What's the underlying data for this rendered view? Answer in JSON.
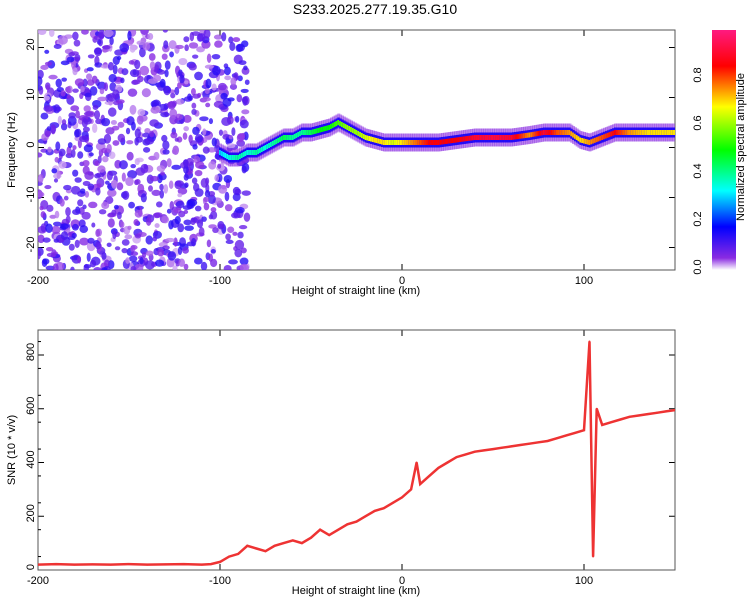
{
  "chart_data": [
    {
      "type": "heatmap",
      "title": "S233.2025.277.19.35.G10",
      "xlabel": "Height of straight line (km)",
      "ylabel": "Frequency (Hz)",
      "xlim": [
        -200,
        150
      ],
      "ylim": [
        -24.5,
        23.5
      ],
      "xticks": [
        -200,
        -100,
        0,
        100
      ],
      "yticks": [
        -20,
        -10,
        0,
        10,
        20
      ],
      "colorbar": {
        "label": "Normalized spectral amplitude",
        "ticks": [
          "0.0",
          "0.2",
          "0.4",
          "0.6",
          "0.8"
        ],
        "range": [
          0,
          1
        ]
      },
      "ridge": [
        [
          -100,
          -1,
          0.3
        ],
        [
          -95,
          -2,
          0.35
        ],
        [
          -90,
          -2,
          0.4
        ],
        [
          -85,
          -1,
          0.35
        ],
        [
          -80,
          -1,
          0.4
        ],
        [
          -75,
          0,
          0.35
        ],
        [
          -70,
          1,
          0.4
        ],
        [
          -65,
          2,
          0.45
        ],
        [
          -60,
          2,
          0.4
        ],
        [
          -55,
          3,
          0.4
        ],
        [
          -50,
          3,
          0.45
        ],
        [
          -45,
          3.5,
          0.5
        ],
        [
          -40,
          4,
          0.5
        ],
        [
          -35,
          5,
          0.55
        ],
        [
          -30,
          4,
          0.6
        ],
        [
          -25,
          3,
          0.6
        ],
        [
          -20,
          2,
          0.65
        ],
        [
          -15,
          1.5,
          0.7
        ],
        [
          -10,
          1,
          0.7
        ],
        [
          -5,
          1,
          0.65
        ],
        [
          0,
          1,
          0.7
        ],
        [
          5,
          1,
          0.75
        ],
        [
          10,
          1,
          0.8
        ],
        [
          15,
          1,
          0.85
        ],
        [
          20,
          1,
          0.85
        ],
        [
          30,
          1.5,
          0.85
        ],
        [
          40,
          2,
          0.9
        ],
        [
          50,
          2,
          0.92
        ],
        [
          60,
          2,
          0.9
        ],
        [
          70,
          2.5,
          0.75
        ],
        [
          78,
          3,
          0.9
        ],
        [
          85,
          3,
          0.8
        ],
        [
          92,
          3,
          0.75
        ],
        [
          98,
          1.5,
          0.7
        ],
        [
          103,
          1,
          0.75
        ],
        [
          110,
          2,
          0.8
        ],
        [
          117,
          3,
          0.85
        ],
        [
          125,
          3,
          0.75
        ],
        [
          135,
          3,
          0.7
        ],
        [
          150,
          3,
          0.7
        ]
      ],
      "noise_region": {
        "x_from": -200,
        "x_to": -95,
        "amplitude_range": [
          0.02,
          0.15
        ]
      }
    },
    {
      "type": "line",
      "xlabel": "Height of straight line (km)",
      "ylabel": "SNR (10 * v/v)",
      "xlim": [
        -200,
        150
      ],
      "ylim": [
        0,
        893
      ],
      "xticks": [
        -200,
        -100,
        0,
        100
      ],
      "yticks": [
        0,
        200,
        400,
        600,
        800
      ],
      "color": "#ee3333",
      "x": [
        -200,
        -190,
        -180,
        -170,
        -160,
        -150,
        -140,
        -130,
        -120,
        -110,
        -105,
        -100,
        -95,
        -90,
        -85,
        -80,
        -75,
        -70,
        -65,
        -60,
        -55,
        -50,
        -45,
        -40,
        -35,
        -30,
        -25,
        -20,
        -15,
        -10,
        -5,
        0,
        5,
        8,
        10,
        15,
        20,
        25,
        30,
        35,
        40,
        45,
        50,
        55,
        60,
        65,
        70,
        75,
        80,
        85,
        90,
        95,
        100,
        103,
        105,
        107,
        110,
        115,
        120,
        125,
        130,
        135,
        140,
        145,
        150
      ],
      "y": [
        20,
        22,
        20,
        21,
        20,
        22,
        20,
        21,
        22,
        20,
        22,
        30,
        50,
        60,
        90,
        80,
        70,
        90,
        100,
        110,
        100,
        120,
        150,
        130,
        150,
        170,
        180,
        200,
        220,
        230,
        250,
        270,
        300,
        400,
        320,
        350,
        380,
        400,
        420,
        430,
        440,
        445,
        450,
        455,
        460,
        465,
        470,
        475,
        480,
        490,
        500,
        510,
        520,
        850,
        50,
        600,
        540,
        550,
        560,
        570,
        575,
        580,
        585,
        590,
        595
      ]
    }
  ]
}
